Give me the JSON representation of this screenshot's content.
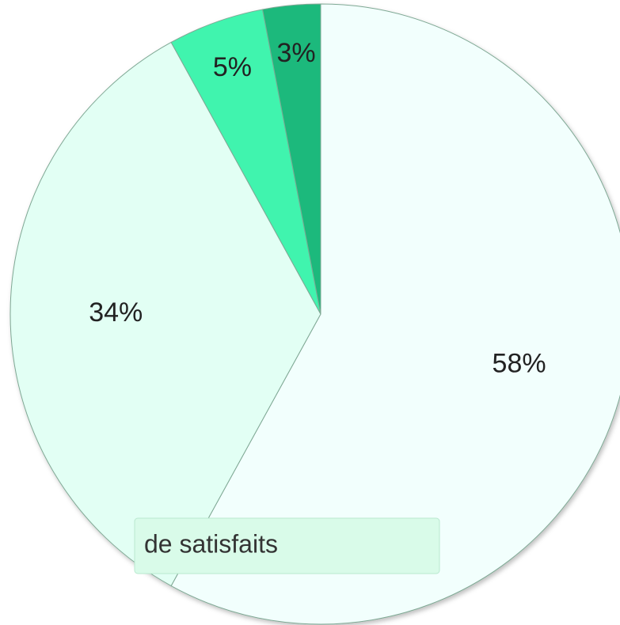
{
  "chart_data": {
    "type": "pie",
    "categories": [
      "de satisfaits",
      null,
      null,
      null
    ],
    "values": [
      58,
      34,
      5,
      3
    ],
    "value_labels": [
      "58%",
      "34%",
      "5%",
      "3%"
    ],
    "colors": [
      "#f2fffd",
      "#e2fff4",
      "#3ff4ae",
      "#1cb97c"
    ],
    "legend": "bottom"
  }
}
